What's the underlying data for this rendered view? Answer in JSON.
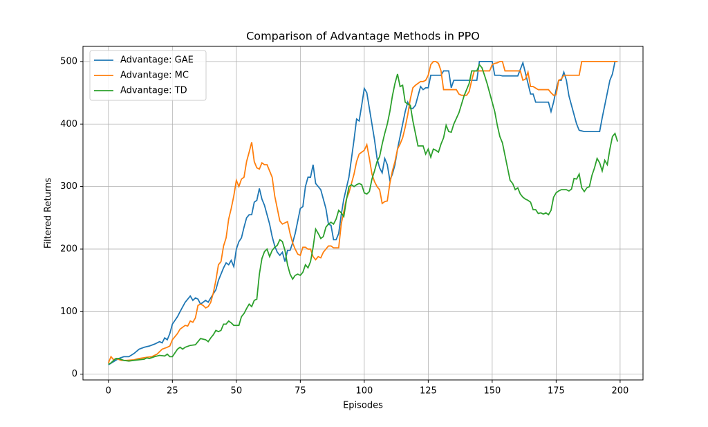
{
  "chart_data": {
    "type": "line",
    "title": "Comparison of Advantage Methods in PPO",
    "xlabel": "Episodes",
    "ylabel": "Filtered Returns",
    "xlim": [
      -9.95,
      208.95
    ],
    "ylim": [
      -9.25,
      524.25
    ],
    "xticks": [
      0,
      25,
      50,
      75,
      100,
      125,
      150,
      175,
      200
    ],
    "yticks": [
      0,
      100,
      200,
      300,
      400,
      500
    ],
    "grid": true,
    "legend": "upper left",
    "series": [
      {
        "name": "Advantage: GAE",
        "color": "#1f77b4",
        "x": [
          0,
          2,
          4,
          6,
          8,
          10,
          12,
          14,
          16,
          18,
          20,
          21,
          22,
          23,
          24,
          25,
          27,
          28,
          30,
          32,
          33,
          34,
          35,
          36,
          37,
          38,
          39,
          40,
          42,
          43,
          45,
          46,
          47,
          48,
          49,
          50,
          51,
          52,
          53,
          54,
          55,
          56,
          57,
          58,
          59,
          60,
          61,
          62,
          63,
          64,
          65,
          66,
          67,
          68,
          69,
          70,
          71,
          72,
          73,
          74,
          75,
          76,
          77,
          78,
          79,
          80,
          81,
          82,
          83,
          85,
          86,
          87,
          88,
          89,
          90,
          91,
          92,
          94,
          95,
          96,
          97,
          98,
          99,
          100,
          101,
          102,
          103,
          104,
          105,
          106,
          107,
          108,
          109,
          110,
          111,
          112,
          113,
          114,
          115,
          116,
          117,
          118,
          119,
          120,
          121,
          122,
          123,
          124,
          125,
          126,
          130,
          131,
          133,
          134,
          135,
          144,
          145,
          150,
          151,
          153,
          154,
          160,
          162,
          164,
          165,
          166,
          167,
          172,
          173,
          174,
          175,
          176,
          177,
          178,
          179,
          180,
          182,
          183,
          184,
          186,
          192,
          193,
          194,
          196,
          197,
          198,
          199
        ],
        "values": [
          15,
          20,
          25,
          28,
          28,
          33,
          40,
          43,
          45,
          48,
          52,
          50,
          58,
          55,
          65,
          80,
          92,
          100,
          115,
          125,
          118,
          122,
          120,
          112,
          115,
          118,
          115,
          122,
          135,
          150,
          170,
          178,
          175,
          182,
          172,
          200,
          212,
          218,
          235,
          250,
          255,
          255,
          275,
          278,
          297,
          280,
          270,
          255,
          240,
          220,
          205,
          195,
          190,
          195,
          180,
          198,
          198,
          210,
          225,
          245,
          265,
          268,
          300,
          315,
          315,
          335,
          305,
          300,
          295,
          265,
          240,
          238,
          215,
          215,
          225,
          255,
          280,
          315,
          345,
          375,
          408,
          405,
          430,
          457,
          450,
          425,
          400,
          375,
          345,
          330,
          322,
          345,
          335,
          310,
          320,
          335,
          360,
          380,
          400,
          420,
          435,
          425,
          425,
          430,
          445,
          460,
          455,
          458,
          458,
          478,
          478,
          485,
          485,
          458,
          470,
          470,
          500,
          500,
          478,
          478,
          477,
          477,
          498,
          465,
          448,
          448,
          435,
          435,
          420,
          435,
          455,
          470,
          470,
          483,
          470,
          445,
          415,
          400,
          390,
          388,
          388,
          410,
          430,
          470,
          480,
          500,
          500
        ]
      },
      {
        "name": "Advantage: MC",
        "color": "#ff7f0e",
        "x": [
          0,
          1,
          2,
          3,
          5,
          7,
          10,
          12,
          15,
          17,
          19,
          20,
          21,
          23,
          24,
          25,
          26,
          27,
          28,
          30,
          31,
          32,
          33,
          34,
          35,
          36,
          37,
          38,
          39,
          40,
          41,
          42,
          43,
          44,
          45,
          46,
          47,
          48,
          49,
          50,
          51,
          52,
          53,
          54,
          55,
          56,
          57,
          58,
          59,
          60,
          61,
          62,
          63,
          64,
          65,
          66,
          67,
          68,
          69,
          70,
          71,
          72,
          73,
          74,
          75,
          76,
          77,
          78,
          79,
          80,
          81,
          82,
          83,
          84,
          85,
          86,
          87,
          88,
          89,
          90,
          91,
          92,
          93,
          94,
          95,
          96,
          97,
          98,
          99,
          100,
          101,
          102,
          103,
          104,
          105,
          106,
          107,
          108,
          109,
          110,
          111,
          112,
          113,
          114,
          115,
          116,
          117,
          118,
          119,
          120,
          121,
          122,
          123,
          124,
          125,
          126,
          127,
          128,
          129,
          130,
          131,
          135,
          136,
          137,
          138,
          140,
          141,
          142,
          143,
          146,
          149,
          150,
          151,
          152,
          153,
          154,
          155,
          161,
          162,
          163,
          164,
          165,
          166,
          168,
          172,
          173,
          174,
          175,
          176,
          177,
          178,
          184,
          185,
          199
        ],
        "values": [
          18,
          28,
          23,
          25,
          22,
          22,
          23,
          25,
          27,
          28,
          32,
          36,
          40,
          43,
          45,
          55,
          60,
          65,
          72,
          78,
          77,
          85,
          83,
          90,
          110,
          112,
          110,
          106,
          108,
          115,
          130,
          150,
          175,
          180,
          205,
          218,
          248,
          265,
          285,
          310,
          300,
          312,
          315,
          340,
          355,
          371,
          340,
          330,
          328,
          338,
          335,
          335,
          325,
          315,
          285,
          265,
          245,
          240,
          242,
          244,
          225,
          210,
          200,
          192,
          190,
          203,
          203,
          200,
          200,
          188,
          183,
          188,
          186,
          195,
          200,
          205,
          205,
          202,
          202,
          202,
          240,
          260,
          280,
          290,
          305,
          320,
          340,
          352,
          355,
          358,
          367,
          345,
          320,
          308,
          300,
          295,
          273,
          276,
          277,
          305,
          325,
          340,
          360,
          368,
          378,
          395,
          415,
          440,
          458,
          462,
          465,
          468,
          468,
          470,
          478,
          495,
          500,
          500,
          497,
          485,
          455,
          455,
          455,
          448,
          446,
          446,
          452,
          470,
          485,
          485,
          485,
          495,
          497,
          498,
          500,
          500,
          485,
          485,
          470,
          472,
          483,
          460,
          460,
          455,
          455,
          450,
          446,
          447,
          470,
          472,
          478,
          478,
          500,
          500
        ]
      },
      {
        "name": "Advantage: TD",
        "color": "#2ca02c",
        "x": [
          0,
          1,
          2,
          3,
          4,
          6,
          8,
          10,
          12,
          14,
          15,
          16,
          18,
          20,
          22,
          23,
          24,
          25,
          27,
          28,
          29,
          30,
          32,
          34,
          35,
          36,
          38,
          39,
          40,
          41,
          42,
          43,
          44,
          45,
          46,
          47,
          48,
          49,
          51,
          52,
          53,
          54,
          55,
          56,
          57,
          58,
          59,
          60,
          61,
          62,
          63,
          64,
          65,
          66,
          67,
          68,
          69,
          70,
          71,
          72,
          73,
          74,
          75,
          76,
          77,
          78,
          79,
          80,
          81,
          82,
          83,
          84,
          85,
          86,
          87,
          88,
          89,
          90,
          91,
          92,
          93,
          94,
          95,
          96,
          97,
          98,
          99,
          100,
          101,
          102,
          103,
          104,
          105,
          106,
          107,
          108,
          109,
          110,
          111,
          112,
          113,
          114,
          115,
          116,
          117,
          118,
          119,
          120,
          121,
          123,
          124,
          125,
          126,
          127,
          128,
          129,
          130,
          131,
          132,
          133,
          134,
          135,
          137,
          139,
          141,
          142,
          143,
          144,
          145,
          146,
          147,
          148,
          149,
          150,
          151,
          152,
          153,
          154,
          155,
          156,
          157,
          158,
          159,
          160,
          161,
          162,
          163,
          164,
          165,
          166,
          167,
          168,
          169,
          170,
          171,
          172,
          173,
          174,
          175,
          176,
          177,
          179,
          180,
          181,
          182,
          183,
          184,
          185,
          186,
          187,
          188,
          189,
          190,
          191,
          192,
          193,
          194,
          195,
          196,
          197,
          198,
          199
        ],
        "values": [
          16,
          18,
          22,
          25,
          25,
          22,
          21,
          22,
          23,
          24,
          26,
          25,
          28,
          30,
          29,
          32,
          28,
          28,
          40,
          43,
          40,
          43,
          46,
          47,
          52,
          57,
          55,
          52,
          58,
          63,
          70,
          68,
          70,
          80,
          80,
          85,
          82,
          78,
          78,
          92,
          97,
          105,
          112,
          108,
          118,
          120,
          160,
          185,
          196,
          200,
          188,
          198,
          203,
          206,
          215,
          212,
          198,
          175,
          160,
          152,
          158,
          160,
          158,
          163,
          175,
          170,
          180,
          203,
          232,
          225,
          217,
          220,
          235,
          240,
          243,
          240,
          248,
          262,
          258,
          252,
          278,
          300,
          303,
          300,
          303,
          305,
          303,
          290,
          288,
          292,
          312,
          325,
          340,
          348,
          368,
          385,
          400,
          420,
          445,
          465,
          480,
          460,
          462,
          435,
          432,
          430,
          405,
          385,
          365,
          365,
          352,
          360,
          347,
          360,
          358,
          355,
          368,
          378,
          398,
          388,
          387,
          400,
          418,
          445,
          465,
          485,
          485,
          485,
          495,
          490,
          478,
          465,
          450,
          435,
          420,
          398,
          380,
          370,
          350,
          330,
          310,
          305,
          295,
          298,
          288,
          283,
          280,
          278,
          275,
          263,
          263,
          257,
          258,
          256,
          258,
          255,
          262,
          283,
          290,
          293,
          295,
          295,
          293,
          296,
          313,
          312,
          320,
          298,
          292,
          298,
          300,
          318,
          330,
          345,
          338,
          325,
          342,
          335,
          360,
          380,
          385,
          372
        ]
      }
    ]
  }
}
